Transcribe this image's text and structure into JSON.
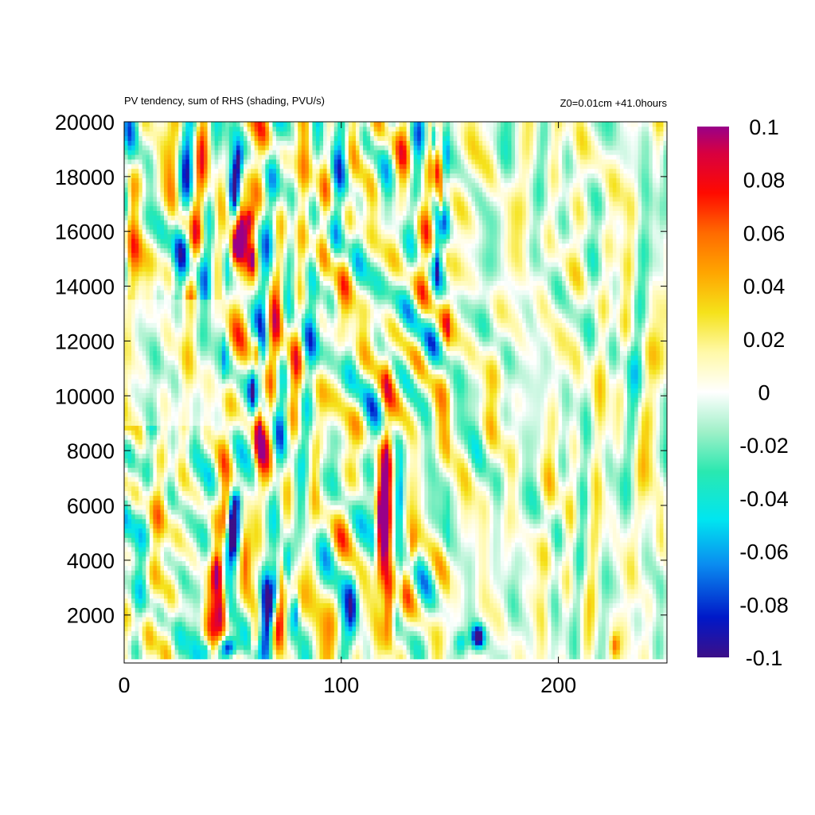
{
  "chart_data": {
    "type": "heatmap",
    "title": "PV tendency, sum of RHS (shading, PVU/s)",
    "subtitle": "Z0=0.01cm   +41.0hours",
    "xlabel": "",
    "ylabel": "",
    "xlim": [
      0,
      250
    ],
    "ylim": [
      250,
      20000
    ],
    "data_ylim": [
      400,
      20000
    ],
    "x_ticks": [
      0,
      100,
      200
    ],
    "y_ticks": [
      2000,
      4000,
      6000,
      8000,
      10000,
      12000,
      14000,
      16000,
      18000,
      20000
    ],
    "colorbar": {
      "range": [
        -0.1,
        0.1
      ],
      "ticks": [
        0.1,
        0.08,
        0.06,
        0.04,
        0.02,
        0,
        -0.02,
        -0.04,
        -0.06,
        -0.08,
        -0.1
      ],
      "tick_labels": [
        "0.1",
        "0.08",
        "0.06",
        "0.04",
        "0.02",
        "0",
        "-0.02",
        "-0.04",
        "-0.06",
        "-0.08",
        "-0.1"
      ],
      "colormap_stops": [
        [
          -0.1,
          "#3c0f88"
        ],
        [
          -0.085,
          "#0018c8"
        ],
        [
          -0.065,
          "#0a8cf0"
        ],
        [
          -0.048,
          "#00e6f0"
        ],
        [
          -0.03,
          "#2ae8b0"
        ],
        [
          -0.015,
          "#9ff0c8"
        ],
        [
          0,
          "#ffffff"
        ],
        [
          0.015,
          "#fff9a8"
        ],
        [
          0.03,
          "#f5e21a"
        ],
        [
          0.045,
          "#ffa500"
        ],
        [
          0.06,
          "#ff6a00"
        ],
        [
          0.075,
          "#ff0a00"
        ],
        [
          0.09,
          "#d80040"
        ],
        [
          0.1,
          "#990088"
        ]
      ]
    },
    "features": [
      {
        "x": 50,
        "y": 5000,
        "sx": 2.0,
        "sy": 700,
        "v": -0.12
      },
      {
        "x": 48,
        "y": 800,
        "sx": 3.0,
        "sy": 320,
        "v": -0.13
      },
      {
        "x": 45,
        "y": 2200,
        "sx": 2.0,
        "sy": 700,
        "v": 0.1
      },
      {
        "x": 43,
        "y": 3600,
        "sx": 1.8,
        "sy": 500,
        "v": 0.09
      },
      {
        "x": 47,
        "y": 5800,
        "sx": 1.5,
        "sy": 700,
        "v": 0.07
      },
      {
        "x": 52,
        "y": 6200,
        "sx": 1.5,
        "sy": 300,
        "v": -0.05
      },
      {
        "x": 56,
        "y": 4000,
        "sx": 1.5,
        "sy": 800,
        "v": 0.04
      },
      {
        "x": 54,
        "y": 16200,
        "sx": 2.0,
        "sy": 900,
        "v": 0.11
      },
      {
        "x": 51,
        "y": 15400,
        "sx": 1.6,
        "sy": 500,
        "v": 0.08
      },
      {
        "x": 51,
        "y": 17600,
        "sx": 1.5,
        "sy": 700,
        "v": -0.09
      },
      {
        "x": 53,
        "y": 18600,
        "sx": 1.2,
        "sy": 400,
        "v": -0.06
      },
      {
        "x": 58,
        "y": 16400,
        "sx": 1.5,
        "sy": 400,
        "v": 0.08
      },
      {
        "x": 59,
        "y": 15000,
        "sx": 1.2,
        "sy": 400,
        "v": 0.06
      },
      {
        "x": 47,
        "y": 14600,
        "sx": 1.2,
        "sy": 600,
        "v": -0.03
      },
      {
        "x": 62,
        "y": 8800,
        "sx": 1.6,
        "sy": 900,
        "v": 0.08
      },
      {
        "x": 61,
        "y": 11700,
        "sx": 1.2,
        "sy": 500,
        "v": 0.08
      },
      {
        "x": 59,
        "y": 10200,
        "sx": 1.2,
        "sy": 500,
        "v": -0.05
      },
      {
        "x": 65,
        "y": 9500,
        "sx": 1.0,
        "sy": 500,
        "v": -0.03
      },
      {
        "x": 66,
        "y": 1800,
        "sx": 2.2,
        "sy": 1000,
        "v": -0.13
      },
      {
        "x": 72,
        "y": 2000,
        "sx": 2.4,
        "sy": 800,
        "v": 0.11
      },
      {
        "x": 75,
        "y": 3800,
        "sx": 1.4,
        "sy": 600,
        "v": -0.07
      },
      {
        "x": 70,
        "y": 3200,
        "sx": 1.2,
        "sy": 700,
        "v": -0.06
      },
      {
        "x": 79,
        "y": 2200,
        "sx": 1.2,
        "sy": 500,
        "v": -0.06
      },
      {
        "x": 60,
        "y": 1100,
        "sx": 1.5,
        "sy": 400,
        "v": 0.06
      },
      {
        "x": 38,
        "y": 700,
        "sx": 1.5,
        "sy": 300,
        "v": -0.05
      },
      {
        "x": 120,
        "y": 5500,
        "sx": 2.6,
        "sy": 1500,
        "v": 0.12
      },
      {
        "x": 122,
        "y": 2200,
        "sx": 1.8,
        "sy": 900,
        "v": 0.1
      },
      {
        "x": 121,
        "y": 8000,
        "sx": 1.5,
        "sy": 1000,
        "v": 0.05
      },
      {
        "x": 127,
        "y": 6500,
        "sx": 1.4,
        "sy": 1100,
        "v": -0.05
      },
      {
        "x": 115,
        "y": 5000,
        "sx": 1.4,
        "sy": 1100,
        "v": -0.045
      },
      {
        "x": 127,
        "y": 3300,
        "sx": 1.2,
        "sy": 600,
        "v": -0.04
      },
      {
        "x": 133,
        "y": 4400,
        "sx": 1.2,
        "sy": 500,
        "v": 0.05
      },
      {
        "x": 121,
        "y": 10800,
        "sx": 1.5,
        "sy": 600,
        "v": 0.03
      },
      {
        "x": 105,
        "y": 2200,
        "sx": 1.5,
        "sy": 700,
        "v": -0.04
      },
      {
        "x": 145,
        "y": 18200,
        "sx": 1.0,
        "sy": 900,
        "v": 0.08
      },
      {
        "x": 143,
        "y": 19500,
        "sx": 1.0,
        "sy": 500,
        "v": -0.08
      },
      {
        "x": 146,
        "y": 17000,
        "sx": 1.0,
        "sy": 400,
        "v": 0.06
      },
      {
        "x": 144,
        "y": 15000,
        "sx": 0.8,
        "sy": 700,
        "v": -0.04
      },
      {
        "x": 163,
        "y": 1200,
        "sx": 2.2,
        "sy": 320,
        "v": -0.12
      },
      {
        "x": 155,
        "y": 1000,
        "sx": 2.0,
        "sy": 300,
        "v": -0.05
      },
      {
        "x": 3,
        "y": 17200,
        "sx": 2.0,
        "sy": 700,
        "v": 0.045
      },
      {
        "x": 27,
        "y": 16300,
        "sx": 1.5,
        "sy": 400,
        "v": 0.05
      },
      {
        "x": 226,
        "y": 900,
        "sx": 1.5,
        "sy": 300,
        "v": 0.05
      },
      {
        "x": 247,
        "y": 5200,
        "sx": 1.4,
        "sy": 900,
        "v": 0.03
      },
      {
        "x": 33,
        "y": 14700,
        "sx": 5.0,
        "sy": 600,
        "v": -0.03
      },
      {
        "x": 91,
        "y": 7000,
        "sx": 1.5,
        "sy": 800,
        "v": -0.03
      }
    ]
  }
}
